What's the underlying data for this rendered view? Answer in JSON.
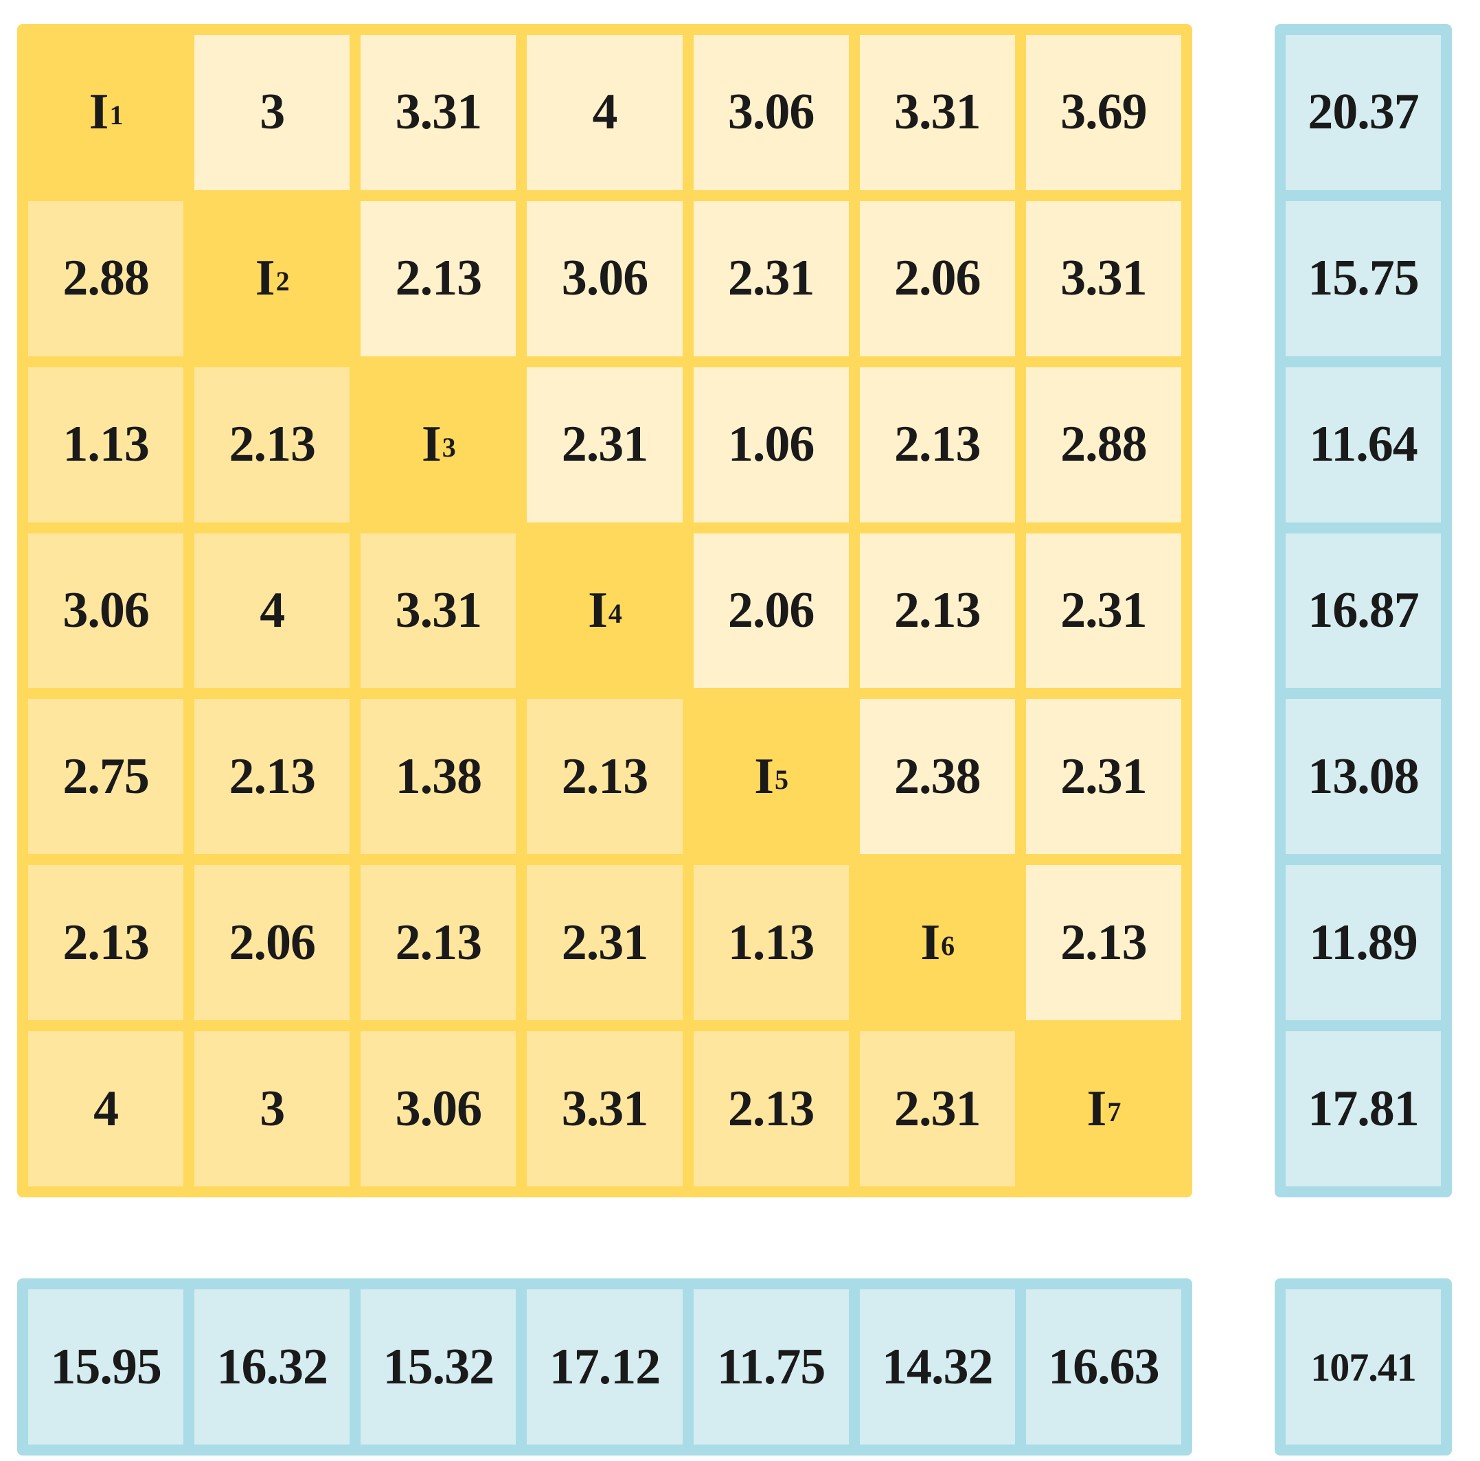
{
  "colors": {
    "matrix_frame": "#FFD95C",
    "diagonal": "#FFD95C",
    "upper_triangle": "#FFF1CC",
    "lower_triangle": "#FFE69E",
    "sum_frame": "#A9DCE7",
    "sum_cell": "#D5ECF0"
  },
  "matrix": {
    "rows": [
      [
        "I|1",
        "3",
        "3.31",
        "4",
        "3.06",
        "3.31",
        "3.69"
      ],
      [
        "2.88",
        "I|2",
        "2.13",
        "3.06",
        "2.31",
        "2.06",
        "3.31"
      ],
      [
        "1.13",
        "2.13",
        "I|3",
        "2.31",
        "1.06",
        "2.13",
        "2.88"
      ],
      [
        "3.06",
        "4",
        "3.31",
        "I|4",
        "2.06",
        "2.13",
        "2.31"
      ],
      [
        "2.75",
        "2.13",
        "1.38",
        "2.13",
        "I|5",
        "2.38",
        "2.31"
      ],
      [
        "2.13",
        "2.06",
        "2.13",
        "2.31",
        "1.13",
        "I|6",
        "2.13"
      ],
      [
        "4",
        "3",
        "3.06",
        "3.31",
        "2.13",
        "2.31",
        "I|7"
      ]
    ]
  },
  "row_sums": [
    "20.37",
    "15.75",
    "11.64",
    "16.87",
    "13.08",
    "11.89",
    "17.81"
  ],
  "column_sums": [
    "15.95",
    "16.32",
    "15.32",
    "17.12",
    "11.75",
    "14.32",
    "16.63"
  ],
  "grand_total": "107.41"
}
